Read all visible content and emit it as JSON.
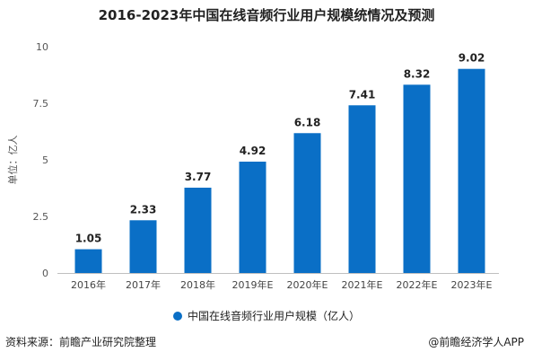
{
  "chart_data": {
    "type": "bar",
    "title": "2016-2023年中国在线音频行业用户规模统情况及预测",
    "ylabel": "单位：亿人",
    "categories": [
      "2016年",
      "2017年",
      "2018年",
      "2019年E",
      "2020年E",
      "2021年E",
      "2022年E",
      "2023年E"
    ],
    "series": [
      {
        "name": "中国在线音频行业用户规模（亿人）",
        "values": [
          1.05,
          2.33,
          3.77,
          4.92,
          6.18,
          7.41,
          8.32,
          9.02
        ]
      }
    ],
    "data_labels": [
      "1.05",
      "2.33",
      "3.77",
      "4.92",
      "6.18",
      "7.41",
      "8.32",
      "9.02"
    ],
    "ylim": [
      0,
      10
    ],
    "yticks": [
      "0",
      "2.5",
      "5",
      "7.5",
      "10"
    ],
    "ytick_values": [
      0,
      2.5,
      5,
      7.5,
      10
    ],
    "grid": false,
    "legend_position": "bottom",
    "bar_color": "#0a6fc6"
  },
  "footer": {
    "source": "资料来源：前瞻产业研究院整理",
    "credit": "@前瞻经济学人APP"
  }
}
